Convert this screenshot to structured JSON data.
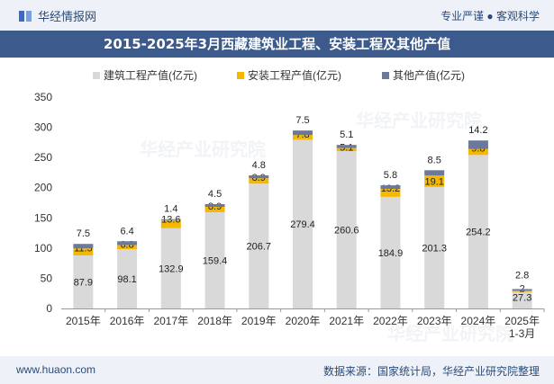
{
  "header": {
    "brand": "华经情报网",
    "slogan": "专业严谨 ● 客观科学"
  },
  "title": "2015-2025年3月西藏建筑业工程、安装工程及其他产值",
  "footer": {
    "url": "www.huaon.com",
    "source": "数据来源：国家统计局，华经产业研究院整理"
  },
  "watermarks": [
    "华经产业研究院",
    "www.huaon.com"
  ],
  "colors": {
    "construction": "#d9d9d9",
    "installation": "#f5b800",
    "other": "#6b7a9b",
    "header": "#3c5a8c"
  },
  "chart_data": {
    "type": "bar",
    "stacked": true,
    "categories": [
      "2015年",
      "2016年",
      "2017年",
      "2018年",
      "2019年",
      "2020年",
      "2021年",
      "2022年",
      "2023年",
      "2024年",
      "2025年\n1-3月"
    ],
    "series": [
      {
        "name": "建筑工程产值(亿元)",
        "values": [
          87.9,
          98.1,
          132.9,
          159.4,
          206.7,
          279.4,
          260.6,
          184.9,
          201.3,
          254.2,
          27.3
        ]
      },
      {
        "name": "安装工程产值(亿元)",
        "values": [
          11.5,
          6.8,
          13.6,
          8.9,
          8.9,
          7.8,
          5.1,
          13.2,
          19.1,
          9.8,
          2
        ]
      },
      {
        "name": "其他产值(亿元)",
        "values": [
          7.5,
          6.4,
          1.4,
          4.5,
          4.8,
          7.5,
          5.1,
          5.8,
          8.5,
          14.2,
          2.8
        ]
      }
    ],
    "ylim": [
      0,
      350
    ],
    "yticks": [
      0,
      50,
      100,
      150,
      200,
      250,
      300,
      350
    ],
    "legend": "top-center",
    "grid": false
  }
}
